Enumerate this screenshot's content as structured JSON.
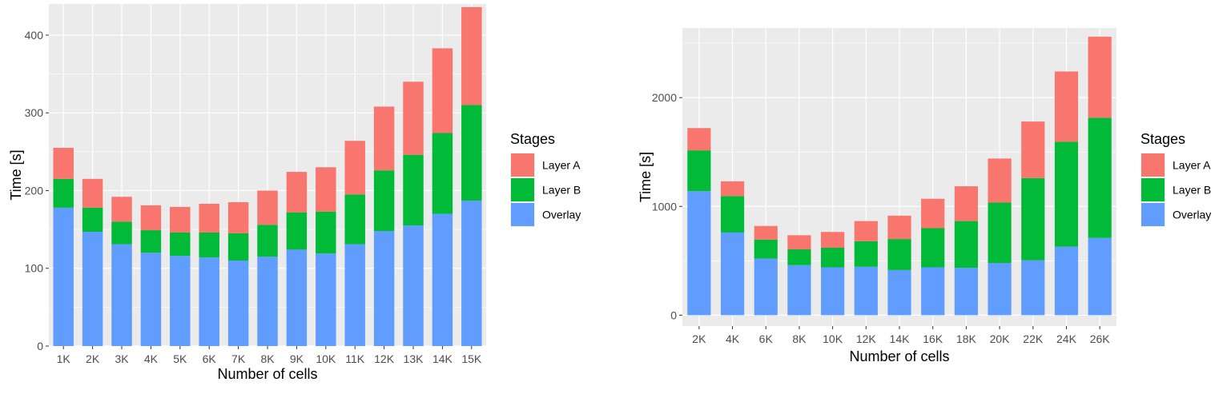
{
  "chart_data": [
    {
      "type": "bar",
      "stacked": true,
      "xlabel": "Number of cells",
      "ylabel": "Time [s]",
      "ylim": [
        0,
        440
      ],
      "yticks": [
        0,
        100,
        200,
        300,
        400
      ],
      "grid": true,
      "legend": {
        "title": "Stages",
        "position": "right"
      },
      "categories": [
        "1K",
        "2K",
        "3K",
        "4K",
        "5K",
        "6K",
        "7K",
        "8K",
        "9K",
        "10K",
        "11K",
        "12K",
        "13K",
        "14K",
        "15K"
      ],
      "series": [
        {
          "name": "Overlay",
          "color": "#619CFF",
          "values": [
            178,
            147,
            131,
            120,
            116,
            114,
            110,
            115,
            124,
            119,
            131,
            148,
            155,
            170,
            187
          ]
        },
        {
          "name": "Layer B",
          "color": "#00BA38",
          "values": [
            37,
            31,
            29,
            29,
            30,
            32,
            35,
            41,
            48,
            54,
            64,
            78,
            91,
            104,
            123
          ]
        },
        {
          "name": "Layer A",
          "color": "#F8766D",
          "values": [
            40,
            37,
            32,
            32,
            33,
            37,
            40,
            44,
            52,
            57,
            69,
            82,
            94,
            109,
            126
          ]
        }
      ]
    },
    {
      "type": "bar",
      "stacked": true,
      "xlabel": "Number of cells",
      "ylabel": "Time [s]",
      "ylim": [
        -100,
        2640
      ],
      "yticks": [
        0,
        1000,
        2000
      ],
      "grid": true,
      "legend": {
        "title": "Stages",
        "position": "right"
      },
      "categories": [
        "2K",
        "4K",
        "6K",
        "8K",
        "10K",
        "12K",
        "14K",
        "16K",
        "18K",
        "20K",
        "22K",
        "24K",
        "26K"
      ],
      "series": [
        {
          "name": "Overlay",
          "color": "#619CFF",
          "values": [
            1140,
            760,
            520,
            460,
            440,
            445,
            415,
            440,
            435,
            480,
            505,
            630,
            710
          ]
        },
        {
          "name": "Layer B",
          "color": "#00BA38",
          "values": [
            375,
            335,
            175,
            145,
            180,
            235,
            285,
            360,
            430,
            555,
            755,
            965,
            1105
          ]
        },
        {
          "name": "Layer A",
          "color": "#F8766D",
          "values": [
            205,
            135,
            125,
            130,
            145,
            185,
            215,
            270,
            320,
            405,
            520,
            645,
            745
          ]
        }
      ]
    }
  ]
}
